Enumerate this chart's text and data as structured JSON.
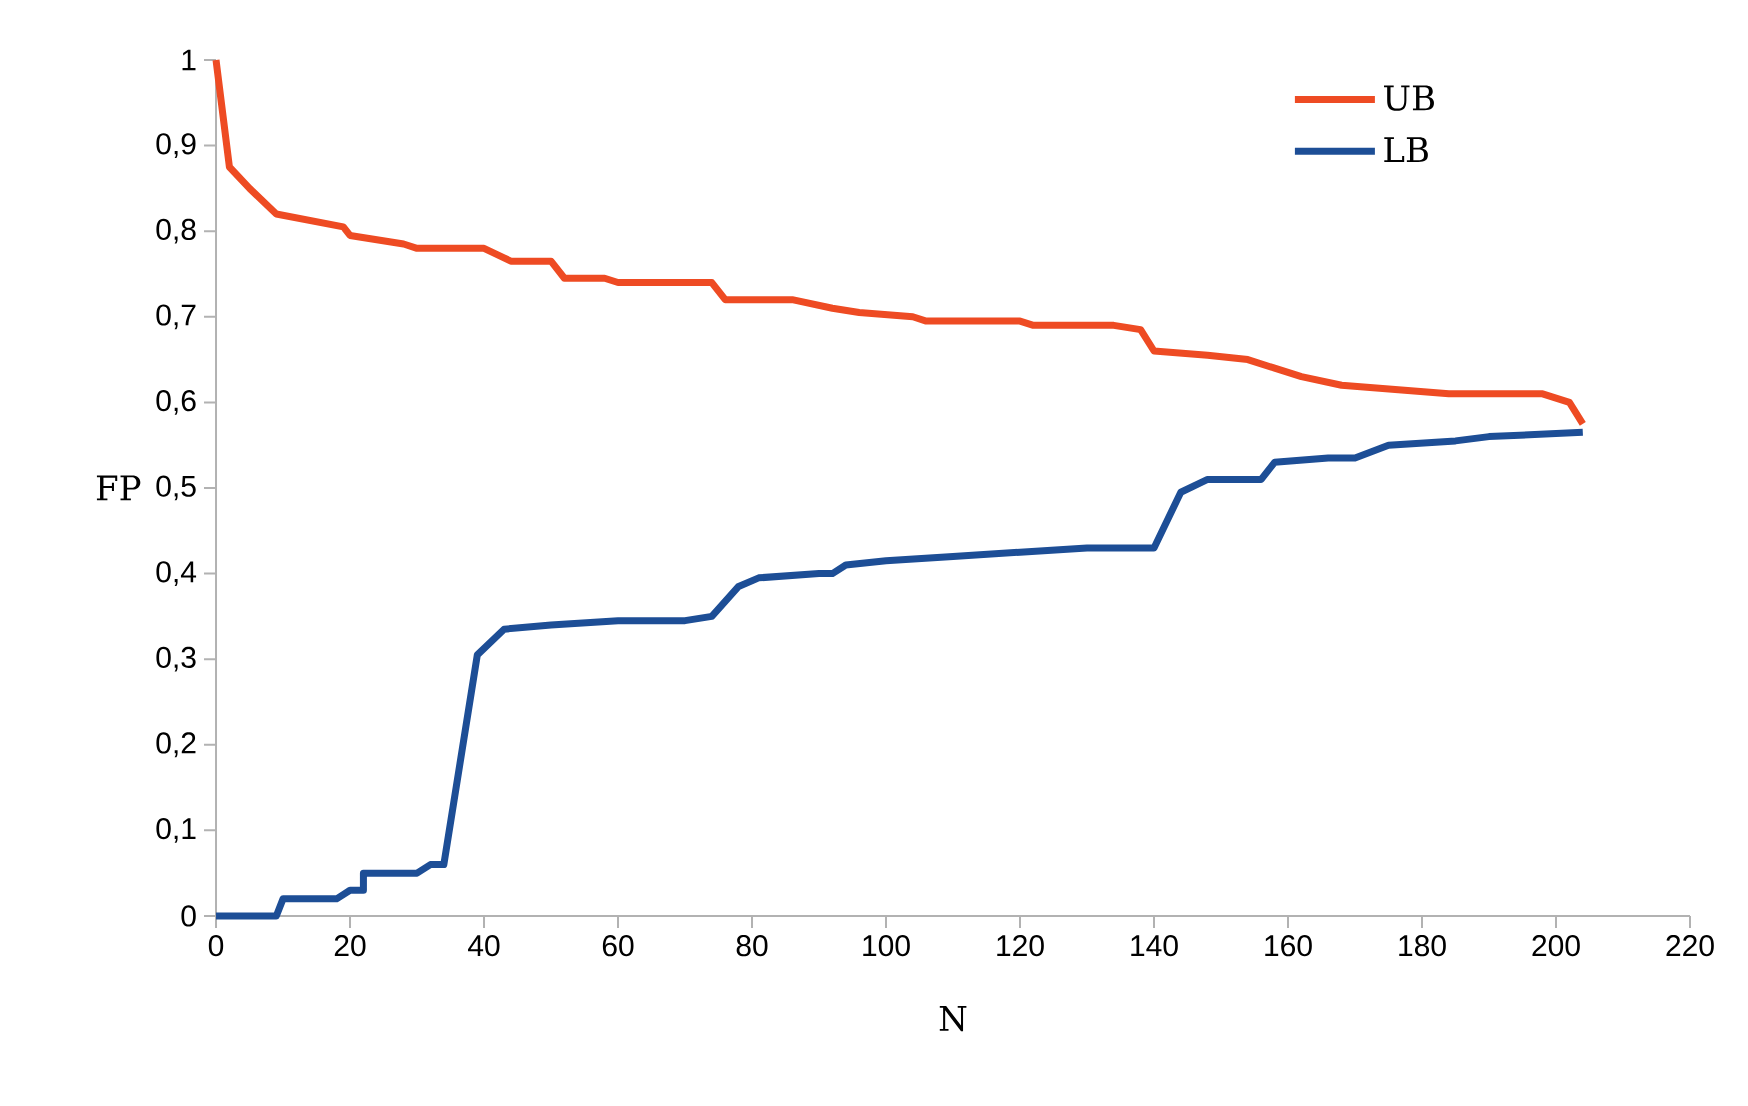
{
  "chart_data": {
    "type": "line",
    "xlabel": "N",
    "ylabel": "FP",
    "xlim": [
      0,
      220
    ],
    "ylim": [
      0,
      1
    ],
    "xticks": [
      0,
      20,
      40,
      60,
      80,
      100,
      120,
      140,
      160,
      180,
      200,
      220
    ],
    "yticks": [
      0,
      {
        "value": 0.1,
        "label": "0,1"
      },
      {
        "value": 0.2,
        "label": "0,2"
      },
      {
        "value": 0.3,
        "label": "0,3"
      },
      {
        "value": 0.4,
        "label": "0,4"
      },
      {
        "value": 0.5,
        "label": "0,5"
      },
      {
        "value": 0.6,
        "label": "0,6"
      },
      {
        "value": 0.7,
        "label": "0,7"
      },
      {
        "value": 0.8,
        "label": "0,8"
      },
      {
        "value": 0.9,
        "label": "0,9"
      },
      1
    ],
    "grid": false,
    "legend": "top right",
    "marker": "none",
    "line_style": "solid",
    "series": [
      {
        "name": "UB",
        "color": "#ee4b23",
        "x": [
          0,
          2,
          5,
          9,
          19,
          20,
          28,
          30,
          40,
          44,
          50,
          52,
          58,
          60,
          74,
          76,
          86,
          92,
          96,
          104,
          106,
          120,
          122,
          134,
          138,
          140,
          148,
          154,
          158,
          162,
          168,
          176,
          184,
          198,
          202,
          204
        ],
        "values": [
          1.0,
          0.875,
          0.85,
          0.82,
          0.805,
          0.795,
          0.785,
          0.78,
          0.78,
          0.765,
          0.765,
          0.745,
          0.745,
          0.74,
          0.74,
          0.72,
          0.72,
          0.71,
          0.705,
          0.7,
          0.695,
          0.695,
          0.69,
          0.69,
          0.685,
          0.66,
          0.655,
          0.65,
          0.64,
          0.63,
          0.62,
          0.615,
          0.61,
          0.61,
          0.6,
          0.575
        ]
      },
      {
        "name": "LB",
        "color": "#1d4e96",
        "x": [
          0,
          9,
          10,
          18,
          20,
          22,
          22,
          30,
          32,
          34,
          39,
          43,
          50,
          60,
          70,
          74,
          78,
          81,
          90,
          92,
          94,
          100,
          110,
          120,
          130,
          140,
          144,
          148,
          156,
          158,
          166,
          170,
          175,
          185,
          190,
          204
        ],
        "values": [
          0,
          0,
          0.02,
          0.02,
          0.03,
          0.03,
          0.05,
          0.05,
          0.06,
          0.06,
          0.305,
          0.335,
          0.34,
          0.345,
          0.345,
          0.35,
          0.385,
          0.395,
          0.4,
          0.4,
          0.41,
          0.415,
          0.42,
          0.425,
          0.43,
          0.43,
          0.495,
          0.51,
          0.51,
          0.53,
          0.535,
          0.535,
          0.55,
          0.555,
          0.56,
          0.565
        ]
      }
    ]
  }
}
